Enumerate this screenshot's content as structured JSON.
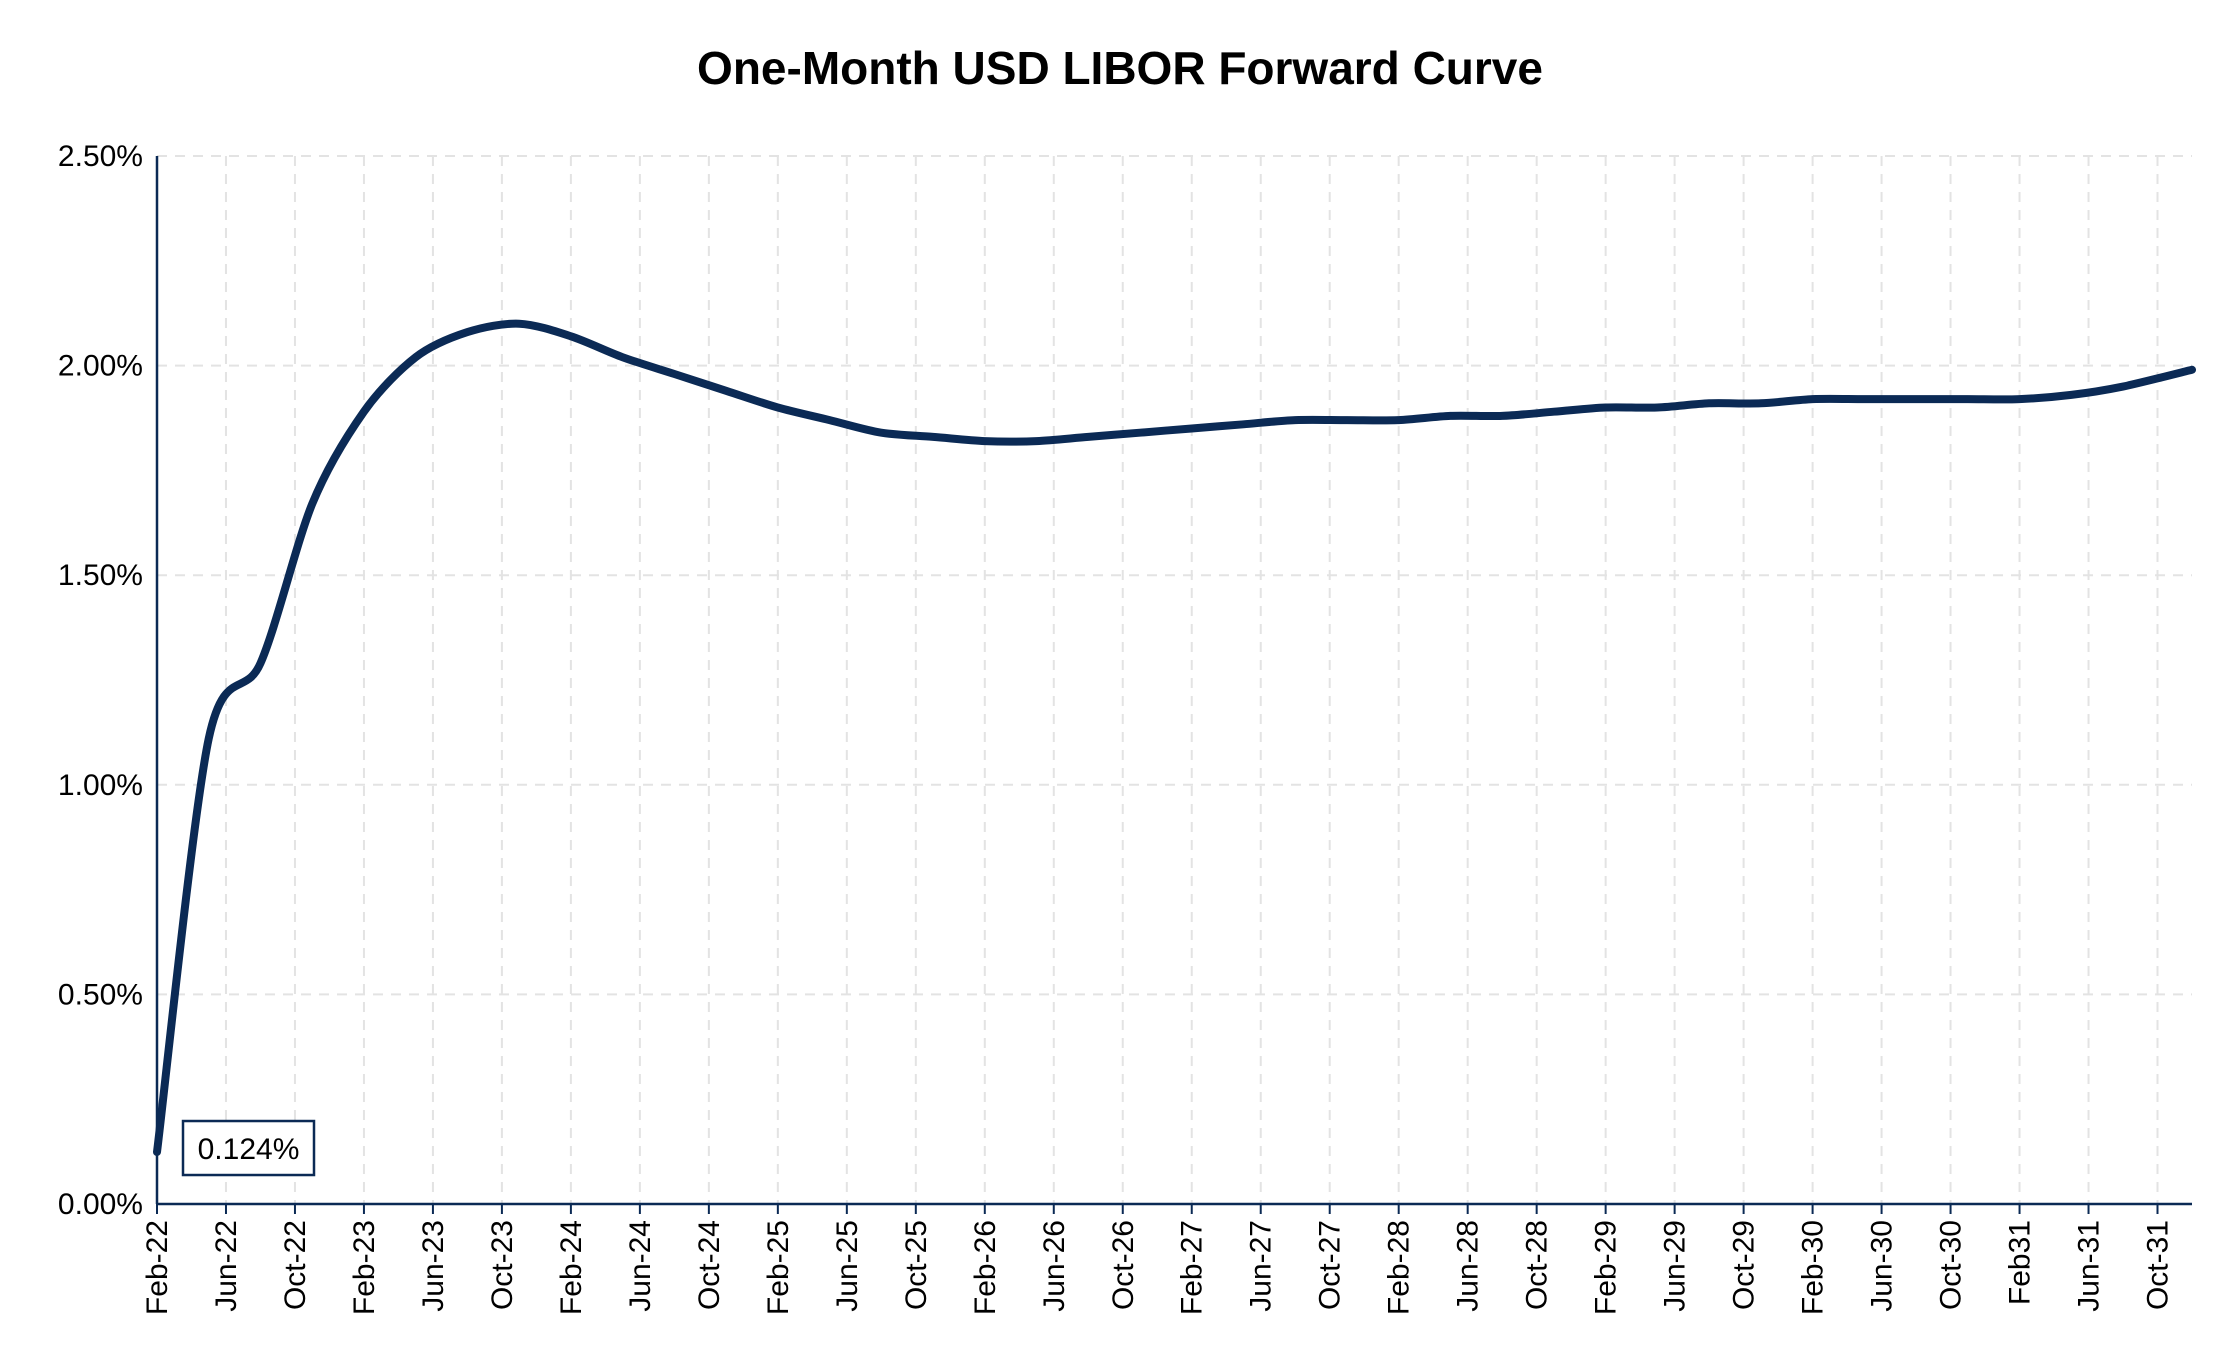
{
  "chart_data": {
    "type": "line",
    "title": "One-Month USD LIBOR Forward Curve",
    "xlabel": "",
    "ylabel": "",
    "ylim": [
      0,
      0.025
    ],
    "y_ticks": [
      0,
      0.005,
      0.01,
      0.015,
      0.02,
      0.025
    ],
    "y_tick_labels": [
      "0.00%",
      "0.50%",
      "1.00%",
      "1.50%",
      "2.00%",
      "2.50%"
    ],
    "x_range": [
      "2022-02",
      "2031-12"
    ],
    "x_ticks": [
      "2022-02",
      "2022-06",
      "2022-10",
      "2023-02",
      "2023-06",
      "2023-10",
      "2024-02",
      "2024-06",
      "2024-10",
      "2025-02",
      "2025-06",
      "2025-10",
      "2026-02",
      "2026-06",
      "2026-10",
      "2027-02",
      "2027-06",
      "2027-10",
      "2028-02",
      "2028-06",
      "2028-10",
      "2029-02",
      "2029-06",
      "2029-10",
      "2030-02",
      "2030-06",
      "2030-10",
      "2031-02",
      "2031-06",
      "2031-10"
    ],
    "x_tick_labels": [
      "Feb-22",
      "Jun-22",
      "Oct-22",
      "Feb-23",
      "Jun-23",
      "Oct-23",
      "Feb-24",
      "Jun-24",
      "Oct-24",
      "Feb-25",
      "Jun-25",
      "Oct-25",
      "Feb-26",
      "Jun-26",
      "Oct-26",
      "Feb-27",
      "Jun-27",
      "Oct-27",
      "Feb-28",
      "Jun-28",
      "Oct-28",
      "Feb-29",
      "Jun-29",
      "Oct-29",
      "Feb-30",
      "Jun-30",
      "Oct-30",
      "Feb31",
      "Jun-31",
      "Oct-31"
    ],
    "grid": true,
    "series": [
      {
        "color": "#0b2a55",
        "x": [
          "2022-02",
          "2022-05",
          "2022-08",
          "2022-11",
          "2023-02",
          "2023-05",
          "2023-08",
          "2023-11",
          "2024-02",
          "2024-05",
          "2024-08",
          "2024-11",
          "2025-02",
          "2025-05",
          "2025-08",
          "2025-11",
          "2026-02",
          "2026-05",
          "2026-08",
          "2026-11",
          "2027-02",
          "2027-05",
          "2027-08",
          "2027-11",
          "2028-02",
          "2028-05",
          "2028-08",
          "2028-11",
          "2029-02",
          "2029-05",
          "2029-08",
          "2029-11",
          "2030-02",
          "2030-05",
          "2030-08",
          "2030-11",
          "2031-02",
          "2031-05",
          "2031-08",
          "2031-12"
        ],
        "values": [
          0.00124,
          0.0111,
          0.0129,
          0.0167,
          0.0189,
          0.0202,
          0.0208,
          0.021,
          0.0207,
          0.0202,
          0.0198,
          0.0194,
          0.019,
          0.0187,
          0.0184,
          0.0183,
          0.0182,
          0.0182,
          0.0183,
          0.0184,
          0.0185,
          0.0186,
          0.0187,
          0.0187,
          0.0187,
          0.0188,
          0.0188,
          0.0189,
          0.019,
          0.019,
          0.0191,
          0.0191,
          0.0192,
          0.0192,
          0.0192,
          0.0192,
          0.0192,
          0.0193,
          0.0195,
          0.0199
        ]
      }
    ],
    "annotations": [
      {
        "x": "2022-02",
        "y": 0.00124,
        "text": "0.124%"
      }
    ]
  }
}
